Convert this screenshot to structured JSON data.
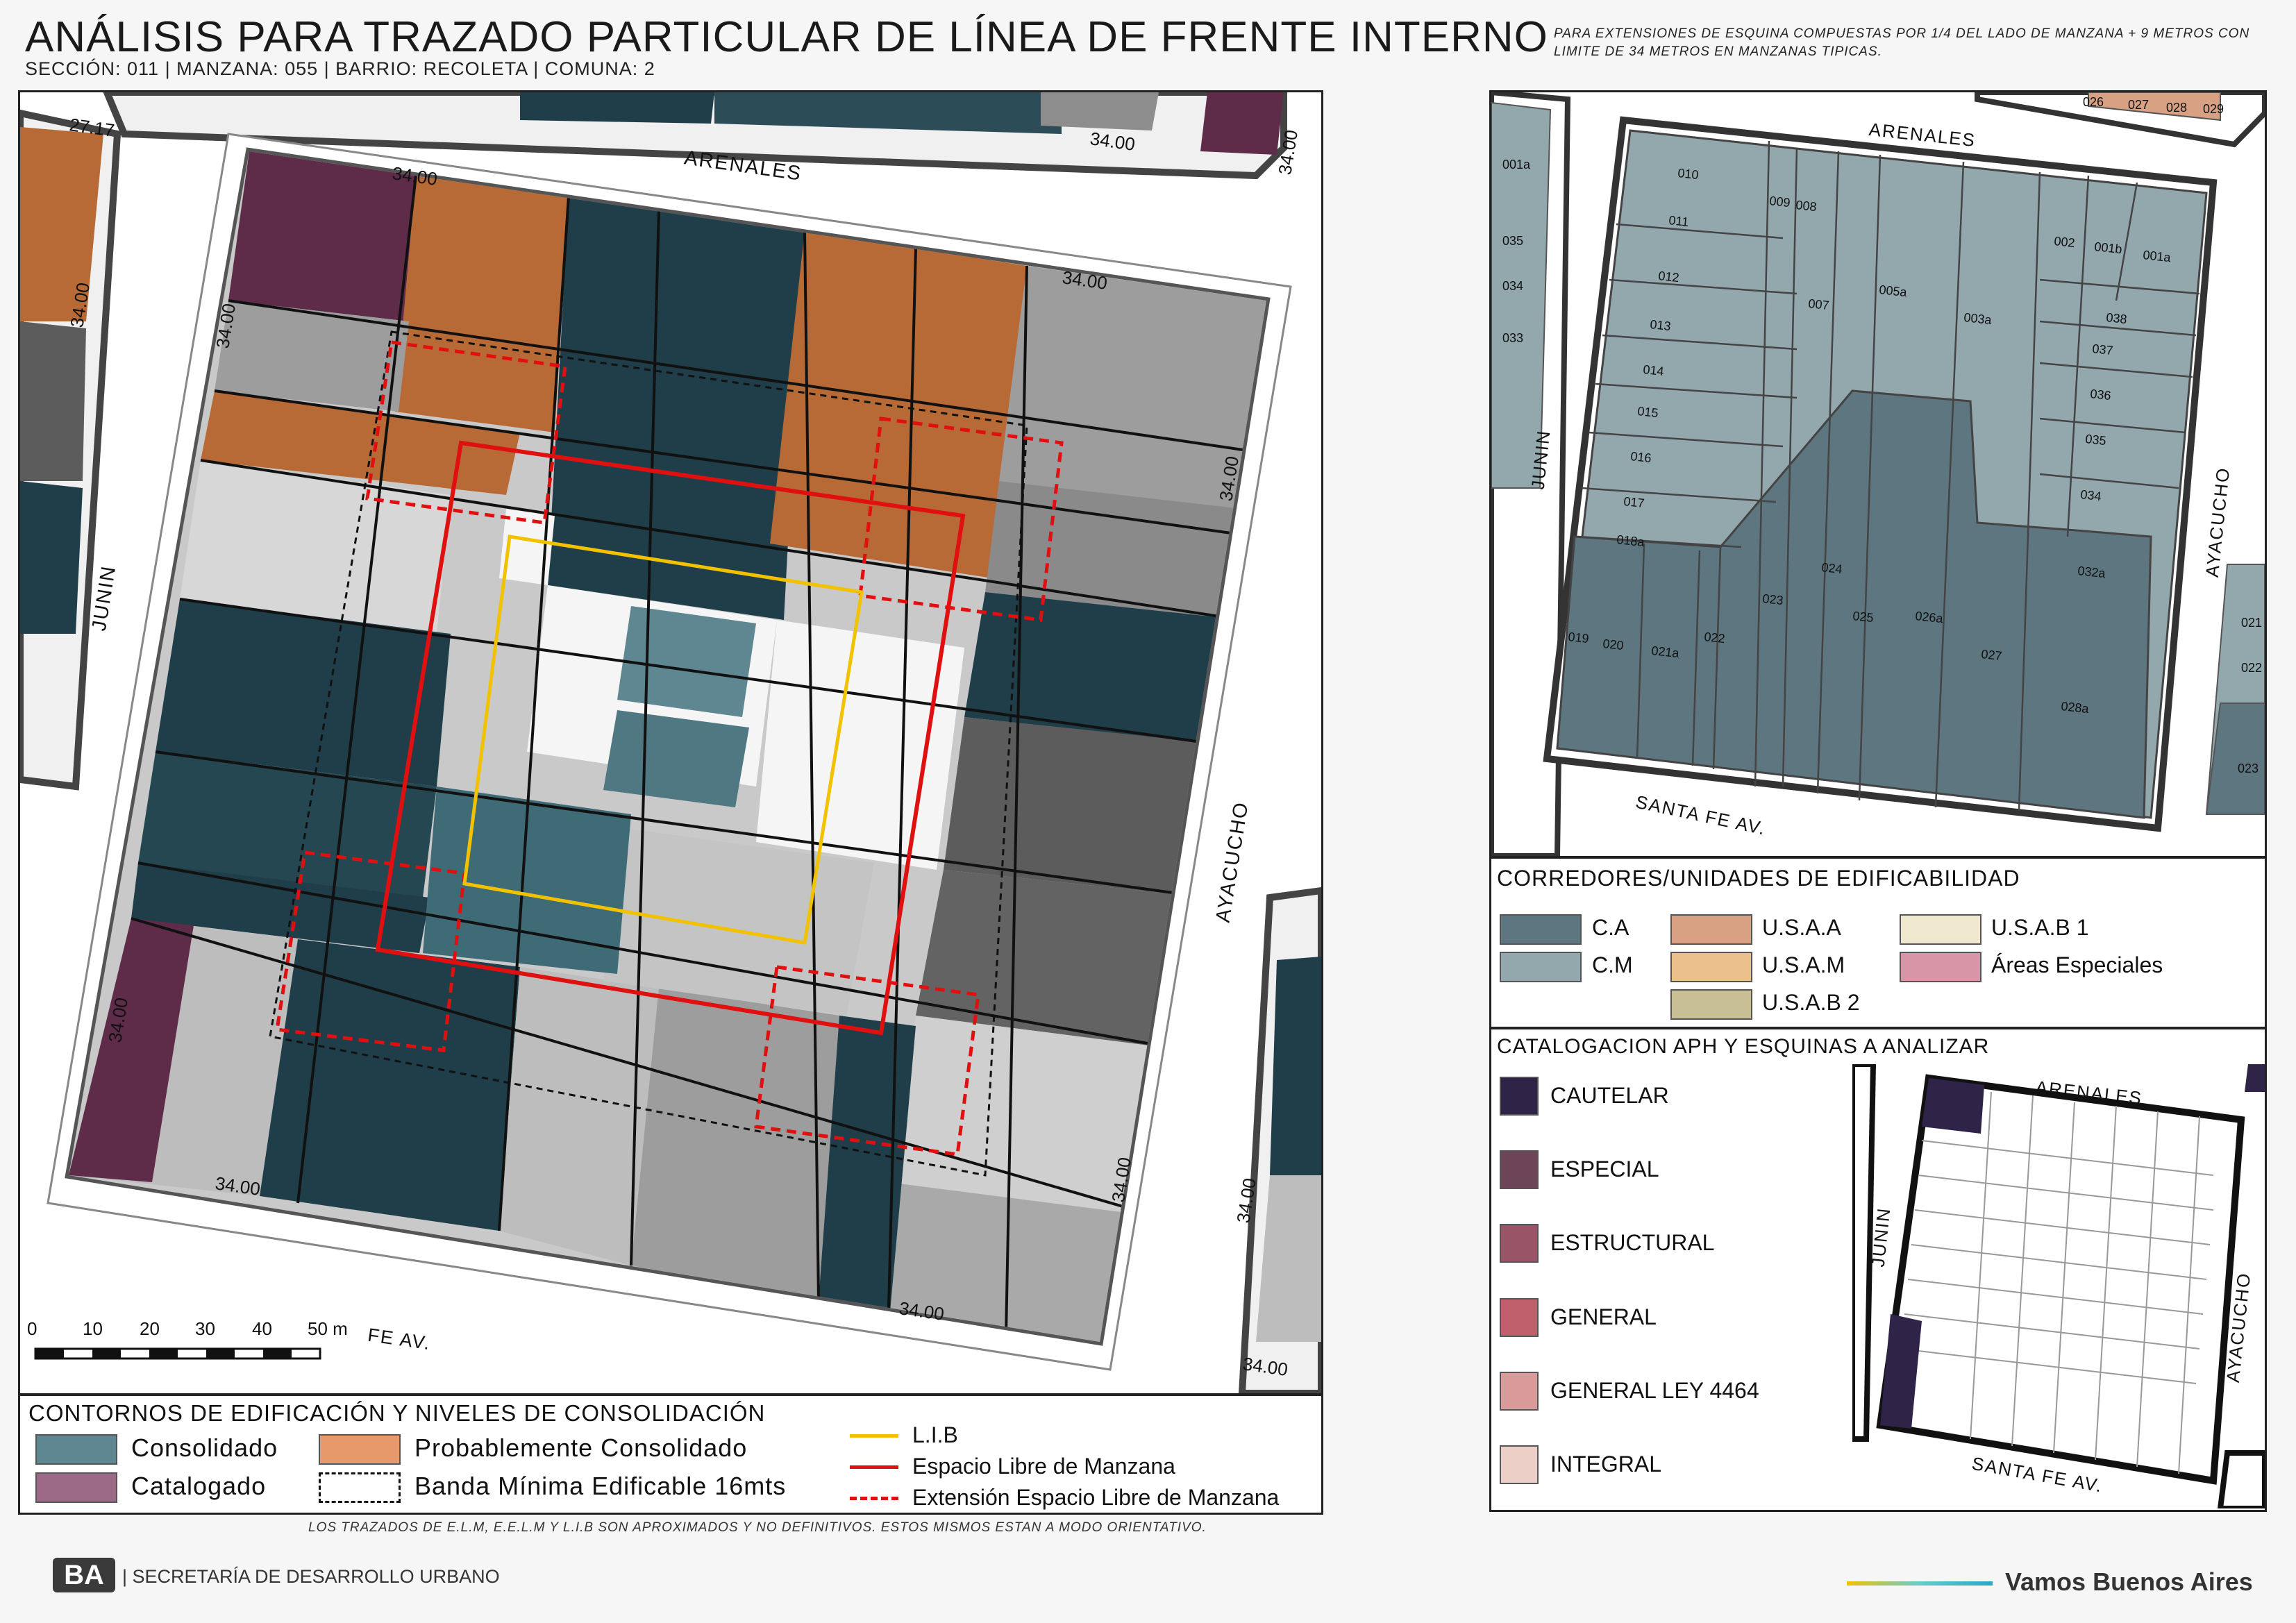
{
  "header": {
    "title": "ANÁLISIS PARA TRAZADO PARTICULAR DE LÍNEA DE FRENTE INTERNO",
    "subtitle": "SECCIÓN: 011 |  MANZANA: 055 | BARRIO: RECOLETA | COMUNA: 2",
    "note": "PARA EXTENSIONES DE ESQUINA COMPUESTAS POR 1/4 DEL LADO DE MANZANA + 9 METROS CON LIMITE DE 34 METROS EN MANZANAS TIPICAS."
  },
  "main_map": {
    "streets": {
      "north": "ARENALES",
      "west": "JUNIN",
      "east": "AYACUCHO",
      "south": "FE AV."
    },
    "dimension": "34.00",
    "dimension_alt": "27.17",
    "scale_labels": [
      "0",
      "10",
      "20",
      "30",
      "40",
      "50 m"
    ]
  },
  "legend_main": {
    "title": "CONTORNOS DE EDIFICACIÓN Y NIVELES DE CONSOLIDACIÓN",
    "consolidado": "Consolidado",
    "probable": "Probablemente Consolidado",
    "catalogado": "Catalogado",
    "banda": "Banda Mínima Edificable 16mts",
    "lib": "L.I.B",
    "elm": "Espacio Libre de Manzana",
    "eelm": "Extensión Espacio Libre de Manzana",
    "colors": {
      "consolidado": "#5f8791",
      "probable": "#e8996b",
      "catalogado": "#9c6a87",
      "lib": "#f2c200",
      "elm": "#e01010"
    }
  },
  "disclaimer": "LOS TRAZADOS DE E.L.M, E.E.L.M Y L.I.B SON APROXIMADOS Y NO DEFINITIVOS. ESTOS MISMOS ESTAN A MODO ORIENTATIVO.",
  "parcel_map": {
    "streets": {
      "north": "ARENALES",
      "west": "JUNIN",
      "east": "AYACUCHO",
      "south": "SANTA FE AV."
    },
    "top_lots": [
      "026",
      "027",
      "028",
      "029"
    ],
    "left_lots": [
      "001a",
      "035",
      "034",
      "033"
    ],
    "right_lots": [
      "021",
      "022",
      "023"
    ],
    "lots": {
      "l010": "010",
      "l009": "009",
      "l008": "008",
      "l011": "011",
      "l012": "012",
      "l013": "013",
      "l014": "014",
      "l015": "015",
      "l016": "016",
      "l017": "017",
      "l018a": "018a",
      "l019": "019",
      "l020": "020",
      "l021a": "021a",
      "l022": "022",
      "l023": "023",
      "l024": "024",
      "l025": "025",
      "l026a": "026a",
      "l027": "027",
      "l028a": "028a",
      "l007": "007",
      "l005a": "005a",
      "l003a": "003a",
      "l002": "002",
      "l001b": "001b",
      "l001a": "001a",
      "l038": "038",
      "l037": "037",
      "l036": "036",
      "l035": "035",
      "l034": "034",
      "l032a": "032a"
    }
  },
  "corredores": {
    "title": "CORREDORES/UNIDADES DE EDIFICABILIDAD",
    "items": [
      {
        "label": "C.A",
        "color": "#5d7680"
      },
      {
        "label": "C.M",
        "color": "#93a8ad"
      },
      {
        "label": "U.S.A.A",
        "color": "#d8a184"
      },
      {
        "label": "U.S.A.M",
        "color": "#ebc08c"
      },
      {
        "label": "U.S.A.B 2",
        "color": "#c9bf94"
      },
      {
        "label": "U.S.A.B 1",
        "color": "#efe8cf"
      },
      {
        "label": "Áreas Especiales",
        "color": "#d995a8"
      }
    ]
  },
  "catalogacion": {
    "title": "CATALOGACION APH Y ESQUINAS A ANALIZAR",
    "items": [
      {
        "label": "CAUTELAR",
        "color": "#2f2347"
      },
      {
        "label": "ESPECIAL",
        "color": "#6e4458"
      },
      {
        "label": "ESTRUCTURAL",
        "color": "#9a5468"
      },
      {
        "label": "GENERAL",
        "color": "#c0606c"
      },
      {
        "label": "GENERAL LEY 4464",
        "color": "#d99a9a"
      },
      {
        "label": "INTEGRAL",
        "color": "#ecd0c8"
      }
    ],
    "streets": {
      "north": "ARENALES",
      "west": "JUNIN",
      "east": "AYACUCHO",
      "south": "SANTA FE AV."
    }
  },
  "footer": {
    "logo": "BA",
    "org": "| SECRETARÍA DE DESARROLLO URBANO",
    "slogan": "Vamos Buenos Aires"
  }
}
